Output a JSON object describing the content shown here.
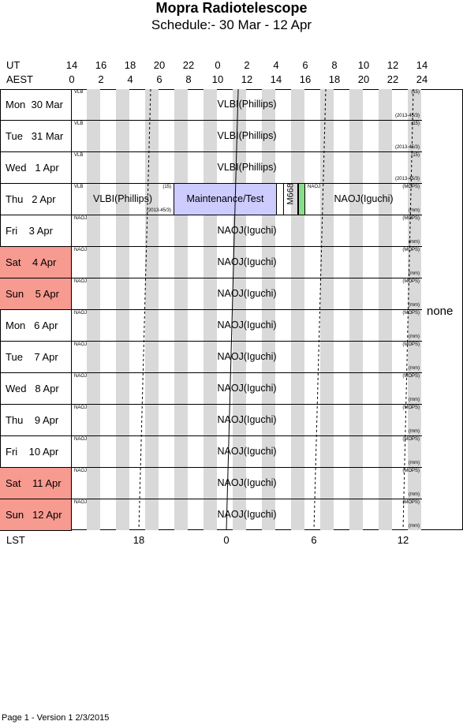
{
  "title": "Mopra Radiotelescope",
  "subtitle": "Schedule:- 30 Mar - 12 Apr",
  "axis": {
    "ut_label": "UT",
    "aest_label": "AEST",
    "ut_ticks": [
      "14",
      "16",
      "18",
      "20",
      "22",
      "0",
      "2",
      "4",
      "6",
      "8",
      "10",
      "12",
      "14"
    ],
    "aest_ticks": [
      "0",
      "2",
      "4",
      "6",
      "8",
      "10",
      "12",
      "14",
      "16",
      "18",
      "20",
      "22",
      "24"
    ],
    "lst_label": "LST",
    "lst_ticks": [
      "18",
      "0",
      "6",
      "12"
    ]
  },
  "days": [
    {
      "label": "Mon  30 Mar",
      "weekend": false
    },
    {
      "label": "Tue   31 Mar",
      "weekend": false
    },
    {
      "label": "Wed   1 Apr",
      "weekend": false
    },
    {
      "label": "Thu   2 Apr",
      "weekend": false
    },
    {
      "label": "Fri    3 Apr",
      "weekend": false
    },
    {
      "label": "Sat    4 Apr",
      "weekend": true
    },
    {
      "label": "Sun    5 Apr",
      "weekend": true
    },
    {
      "label": "Mon   6 Apr",
      "weekend": false
    },
    {
      "label": "Tue    7 Apr",
      "weekend": false
    },
    {
      "label": "Wed   8 Apr",
      "weekend": false
    },
    {
      "label": "Thu    9 Apr",
      "weekend": false
    },
    {
      "label": "Fri    10 Apr",
      "weekend": false
    },
    {
      "label": "Sat    11 Apr",
      "weekend": true
    },
    {
      "label": "Sun   12 Apr",
      "weekend": true
    }
  ],
  "rows": {
    "vlbi": {
      "tag": "VLB",
      "main": "VLBI(Phillips)",
      "topright": "(15)",
      "bottomright": "(2013-45/3)"
    },
    "naoj": {
      "tag": "NAOJ",
      "main": "NAOJ(Iguchi)",
      "topright": "(MOPS)",
      "bottomright": "(mm)"
    },
    "thu": {
      "vlbi": {
        "tag": "VLB",
        "main": "VLBI(Phillips)",
        "topright": "(15)",
        "bottomright": "(2013-45/3)"
      },
      "maint": {
        "main": "Maintenance/Test"
      },
      "m668": {
        "main": "M668"
      },
      "naoj": {
        "tag": "NAOJ",
        "main": "NAOJ(Iguchi)",
        "topright": "(MOPS)",
        "bottomright": "(mm)"
      }
    }
  },
  "side_note": "none",
  "footer": "Page 1 - Version 1  2/3/2015",
  "colors": {
    "weekend": "#f79a90",
    "stripe": "#d9d9d9",
    "maintenance": "#ccccff",
    "m668": "#88dd88"
  }
}
